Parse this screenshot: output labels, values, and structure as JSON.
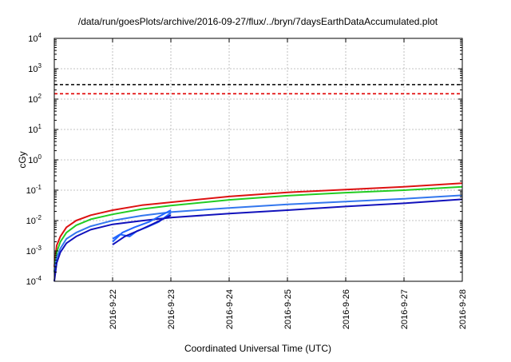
{
  "chart_data": {
    "type": "line",
    "title": "/data/run/goesPlots/archive/2016-09-27/flux/../bryn/7daysEarthDataAccumulated.plot",
    "xlabel": "Coordinated Universal Time (UTC)",
    "ylabel": "cGy",
    "y_scale": "log",
    "ylim": [
      0.0001,
      10000
    ],
    "xlim": [
      "2016-09-21T00:00",
      "2016-09-28T00:00"
    ],
    "grid": true,
    "x_tick_labels": [
      "2016-9-22",
      "2016-9-23",
      "2016-9-24",
      "2016-9-25",
      "2016-9-26",
      "2016-9-27",
      "2016-9-28"
    ],
    "y_tick_labels": [
      {
        "base": "10",
        "exp": "-4",
        "value": 0.0001
      },
      {
        "base": "10",
        "exp": "-3",
        "value": 0.001
      },
      {
        "base": "10",
        "exp": "-2",
        "value": 0.01
      },
      {
        "base": "10",
        "exp": "-1",
        "value": 0.1
      },
      {
        "base": "10",
        "exp": "0",
        "value": 1
      },
      {
        "base": "10",
        "exp": "1",
        "value": 10
      },
      {
        "base": "10",
        "exp": "2",
        "value": 100
      },
      {
        "base": "10",
        "exp": "3",
        "value": 1000
      },
      {
        "base": "10",
        "exp": "4",
        "value": 10000
      }
    ],
    "reference_lines": [
      {
        "value": 300,
        "color": "#000000",
        "style": "dashed"
      },
      {
        "value": 150,
        "color": "#e00000",
        "style": "dashed"
      }
    ],
    "series": [
      {
        "color": "#dd1111",
        "x": [
          "2016-09-21T00:00",
          "2016-09-21T01:00",
          "2016-09-21T02:30",
          "2016-09-21T05:00",
          "2016-09-21T09:00",
          "2016-09-21T15:00",
          "2016-09-22T00:00",
          "2016-09-22T12:00",
          "2016-09-23T00:00",
          "2016-09-24T00:00",
          "2016-09-25T00:00",
          "2016-09-26T00:00",
          "2016-09-27T00:00",
          "2016-09-28T00:00"
        ],
        "values": [
          0.0003,
          0.0015,
          0.003,
          0.006,
          0.01,
          0.015,
          0.022,
          0.032,
          0.04,
          0.062,
          0.085,
          0.105,
          0.13,
          0.17
        ]
      },
      {
        "color": "#22cc22",
        "x": [
          "2016-09-21T00:00",
          "2016-09-21T01:00",
          "2016-09-21T02:30",
          "2016-09-21T05:00",
          "2016-09-21T09:00",
          "2016-09-21T15:00",
          "2016-09-22T00:00",
          "2016-09-22T12:00",
          "2016-09-23T00:00",
          "2016-09-24T00:00",
          "2016-09-25T00:00",
          "2016-09-26T00:00",
          "2016-09-27T00:00",
          "2016-09-28T00:00"
        ],
        "values": [
          0.0002,
          0.0009,
          0.002,
          0.004,
          0.007,
          0.011,
          0.016,
          0.024,
          0.031,
          0.048,
          0.066,
          0.083,
          0.1,
          0.13
        ]
      },
      {
        "color": "#3377ee",
        "x": [
          "2016-09-21T00:00",
          "2016-09-21T01:00",
          "2016-09-21T02:30",
          "2016-09-21T05:00",
          "2016-09-21T09:00",
          "2016-09-21T15:00",
          "2016-09-22T00:00",
          "2016-09-22T12:00",
          "2016-09-23T00:00",
          "2016-09-24T00:00",
          "2016-09-25T00:00",
          "2016-09-26T00:00",
          "2016-09-27T00:00",
          "2016-09-28T00:00"
        ],
        "values": [
          0.0002,
          0.0006,
          0.0012,
          0.0025,
          0.004,
          0.0065,
          0.01,
          0.0145,
          0.019,
          0.026,
          0.034,
          0.042,
          0.052,
          0.068
        ]
      },
      {
        "color": "#1111bb",
        "x": [
          "2016-09-21T00:00",
          "2016-09-21T01:00",
          "2016-09-21T02:30",
          "2016-09-21T05:00",
          "2016-09-21T09:00",
          "2016-09-21T15:00",
          "2016-09-22T00:00",
          "2016-09-22T12:00",
          "2016-09-23T00:00",
          "2016-09-24T00:00",
          "2016-09-25T00:00",
          "2016-09-26T00:00",
          "2016-09-27T00:00",
          "2016-09-28T00:00"
        ],
        "values": [
          0.0001,
          0.0004,
          0.0009,
          0.0018,
          0.003,
          0.005,
          0.0075,
          0.0098,
          0.0125,
          0.017,
          0.022,
          0.029,
          0.037,
          0.05
        ]
      },
      {
        "color": "#2266ff",
        "x": [
          "2016-09-22T00:00",
          "2016-09-22T03:00",
          "2016-09-22T07:00",
          "2016-09-22T10:00",
          "2016-09-22T14:00",
          "2016-09-22T19:00",
          "2016-09-23T00:00"
        ],
        "values": [
          0.0025,
          0.0035,
          0.003,
          0.0045,
          0.006,
          0.009,
          0.018
        ]
      },
      {
        "color": "#2266ff",
        "x": [
          "2016-09-22T00:00",
          "2016-09-22T04:00",
          "2016-09-22T09:00",
          "2016-09-22T15:00",
          "2016-09-23T00:00"
        ],
        "values": [
          0.002,
          0.004,
          0.006,
          0.009,
          0.022
        ]
      },
      {
        "color": "#1111bb",
        "x": [
          "2016-09-22T00:00",
          "2016-09-22T05:00",
          "2016-09-22T11:00",
          "2016-09-22T17:00",
          "2016-09-23T00:00"
        ],
        "values": [
          0.0016,
          0.003,
          0.0048,
          0.008,
          0.015
        ]
      }
    ]
  }
}
